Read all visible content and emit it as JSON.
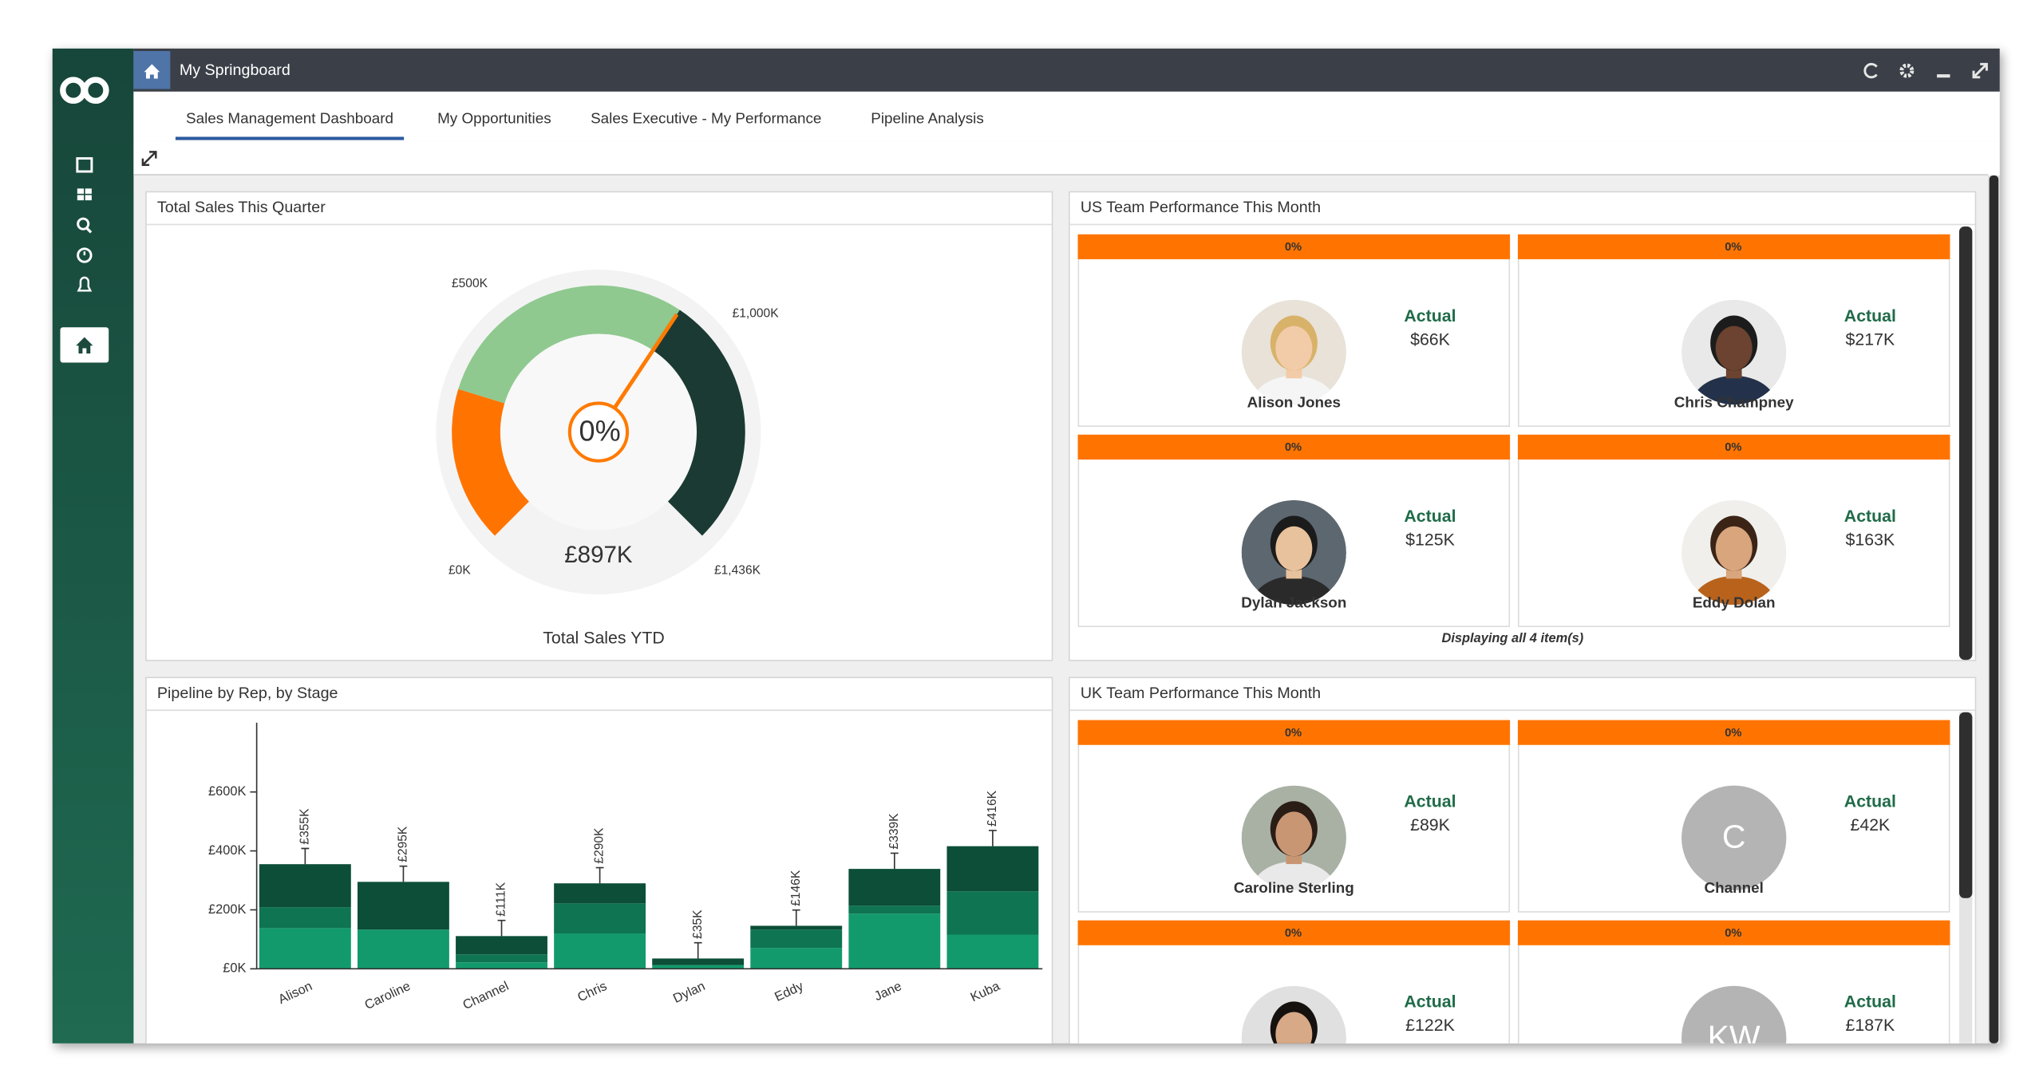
{
  "window": {
    "title": "My Springboard"
  },
  "tabs": [
    "Sales Management Dashboard",
    "My Opportunities",
    "Sales Executive - My Performance",
    "Pipeline Analysis"
  ],
  "active_tab": 0,
  "chart_data": [
    {
      "type": "gauge",
      "title": "Total Sales This Quarter",
      "caption": "Total Sales YTD",
      "center_label": "0%",
      "value": 897,
      "value_label": "£897K",
      "lim": [
        0,
        1436
      ],
      "ticks": [
        {
          "value": 0,
          "label": "£0K"
        },
        {
          "value": 500,
          "label": "£500K"
        },
        {
          "value": 1000,
          "label": "£1,000K"
        },
        {
          "value": 1436,
          "label": "£1,436K"
        }
      ],
      "bands": [
        {
          "to": 330,
          "color": "#ff7400"
        },
        {
          "to": 897,
          "color": "#8fc98f"
        },
        {
          "to": 1436,
          "color": "#1b3a33"
        }
      ]
    },
    {
      "type": "stacked-bar",
      "title": "Pipeline by Rep, by Stage",
      "categories": [
        "Alison",
        "Caroline",
        "Channel",
        "Chris",
        "Dylan",
        "Eddy",
        "Jane",
        "Kuba"
      ],
      "series": [
        {
          "color": "#139a6c",
          "values": [
            138,
            133,
            22,
            120,
            13,
            71,
            187,
            116
          ]
        },
        {
          "color": "#0e7451",
          "values": [
            71,
            0,
            27,
            102,
            0,
            62,
            27,
            147
          ]
        },
        {
          "color": "#0c4e37",
          "values": [
            146,
            162,
            62,
            68,
            22,
            13,
            125,
            153
          ]
        }
      ],
      "totals": {
        "values": [
          355,
          295,
          111,
          290,
          35,
          146,
          339,
          416
        ],
        "value_labels": [
          "£355K",
          "£295K",
          "£111K",
          "£290K",
          "£35K",
          "£146K",
          "£339K",
          "£416K"
        ]
      },
      "ylim": [
        0,
        835
      ],
      "yticks": [
        {
          "value": 0,
          "label": "£0K"
        },
        {
          "value": 200,
          "label": "£200K"
        },
        {
          "value": 400,
          "label": "£400K"
        },
        {
          "value": 600,
          "label": "£600K"
        }
      ]
    }
  ],
  "us_team": {
    "title": "US Team Performance This Month",
    "footer": "Displaying all 4 item(s)",
    "members": [
      {
        "name": "Alison Jones",
        "percent": "0%",
        "metric": "Actual",
        "amount": "$66K"
      },
      {
        "name": "Chris Champney",
        "percent": "0%",
        "metric": "Actual",
        "amount": "$217K"
      },
      {
        "name": "Dylan Jackson",
        "percent": "0%",
        "metric": "Actual",
        "amount": "$125K"
      },
      {
        "name": "Eddy Dolan",
        "percent": "0%",
        "metric": "Actual",
        "amount": "$163K"
      }
    ]
  },
  "uk_team": {
    "title": "UK Team Performance This Month",
    "members": [
      {
        "name": "Caroline Sterling",
        "percent": "0%",
        "metric": "Actual",
        "amount": "£89K"
      },
      {
        "name": "Channel",
        "percent": "0%",
        "metric": "Actual",
        "amount": "£42K",
        "initials": "C"
      },
      {
        "percent": "0%",
        "metric": "Actual",
        "amount": "£122K"
      },
      {
        "percent": "0%",
        "metric": "Actual",
        "amount": "£187K",
        "initials": "KW"
      }
    ]
  }
}
